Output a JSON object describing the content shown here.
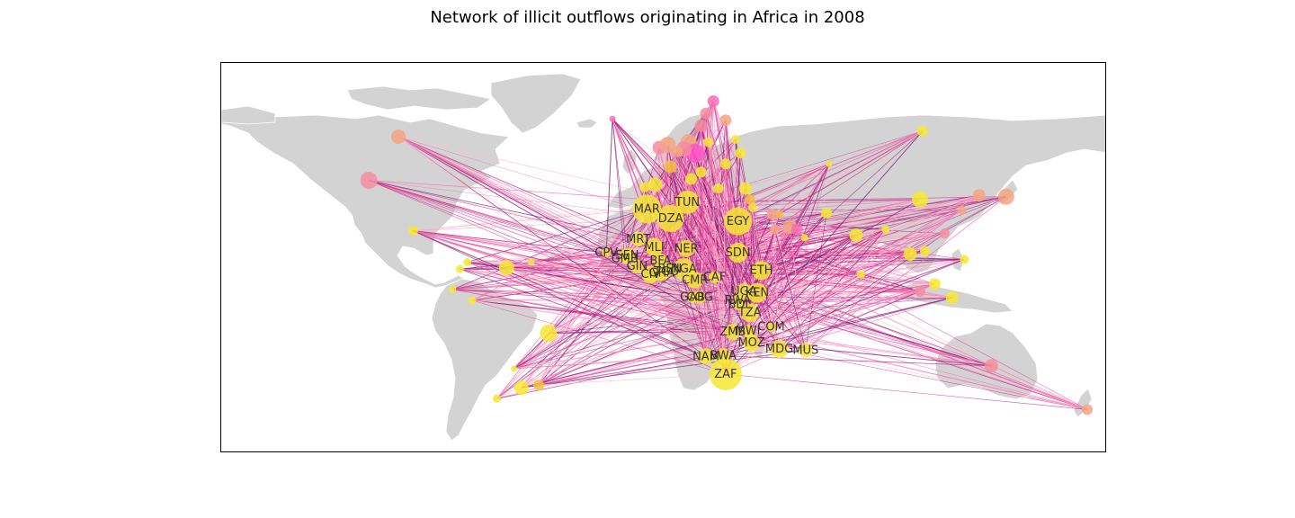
{
  "title": "Network of illicit outflows originating in Africa in 2008",
  "colors": {
    "land": "#d3d3d3",
    "border": "#ffffff",
    "node_african": "#f7e733",
    "edge_palette": [
      "#ffc0cb",
      "#ff9ec8",
      "#f76db5",
      "#e0449a",
      "#b5207f",
      "#7b1c75"
    ]
  },
  "african_nodes": [
    {
      "code": "MAR",
      "lon": -7,
      "lat": 31.5,
      "size": 3.2
    },
    {
      "code": "DZA",
      "lon": 2.6,
      "lat": 28,
      "size": 3.0
    },
    {
      "code": "TUN",
      "lon": 9.5,
      "lat": 34,
      "size": 2.6
    },
    {
      "code": "EGY",
      "lon": 30,
      "lat": 27,
      "size": 3.1
    },
    {
      "code": "MRT",
      "lon": -10.5,
      "lat": 20.5,
      "size": 1.6
    },
    {
      "code": "MLI",
      "lon": -4,
      "lat": 17.5,
      "size": 2.0
    },
    {
      "code": "NER",
      "lon": 9,
      "lat": 17,
      "size": 1.9
    },
    {
      "code": "SDN",
      "lon": 30,
      "lat": 15.5,
      "size": 2.2
    },
    {
      "code": "CPV",
      "lon": -23.5,
      "lat": 15.5,
      "size": 1.0
    },
    {
      "code": "SEN",
      "lon": -15,
      "lat": 14.5,
      "size": 1.7
    },
    {
      "code": "GMB",
      "lon": -16,
      "lat": 13.4,
      "size": 1.1
    },
    {
      "code": "BFA",
      "lon": -1.5,
      "lat": 12.5,
      "size": 1.6
    },
    {
      "code": "GIN",
      "lon": -11,
      "lat": 10.5,
      "size": 1.5
    },
    {
      "code": "BEN",
      "lon": 2.3,
      "lat": 9.5,
      "size": 1.4
    },
    {
      "code": "NGA",
      "lon": 8,
      "lat": 9.5,
      "size": 2.4
    },
    {
      "code": "GHA",
      "lon": -1,
      "lat": 8,
      "size": 1.7
    },
    {
      "code": "TGO",
      "lon": 1,
      "lat": 8.5,
      "size": 1.2
    },
    {
      "code": "CIV",
      "lon": -5.5,
      "lat": 7.5,
      "size": 2.0
    },
    {
      "code": "ETH",
      "lon": 39.5,
      "lat": 9,
      "size": 2.1
    },
    {
      "code": "CMR",
      "lon": 12.5,
      "lat": 5.5,
      "size": 1.9
    },
    {
      "code": "CAF",
      "lon": 20.5,
      "lat": 6.5,
      "size": 1.3
    },
    {
      "code": "GAB",
      "lon": 11.5,
      "lat": -0.8,
      "size": 1.3
    },
    {
      "code": "COG",
      "lon": 14.5,
      "lat": -0.8,
      "size": 1.4
    },
    {
      "code": "UGA",
      "lon": 32.5,
      "lat": 1.3,
      "size": 1.8
    },
    {
      "code": "KEN",
      "lon": 37.8,
      "lat": 0.8,
      "size": 2.2
    },
    {
      "code": "RWA",
      "lon": 29.9,
      "lat": -2,
      "size": 1.2
    },
    {
      "code": "BDI",
      "lon": 30.1,
      "lat": -3.4,
      "size": 1.2
    },
    {
      "code": "TZA",
      "lon": 34.8,
      "lat": -6.4,
      "size": 2.1
    },
    {
      "code": "COM",
      "lon": 43.5,
      "lat": -11.7,
      "size": 1.1
    },
    {
      "code": "ZMB",
      "lon": 27.9,
      "lat": -13.5,
      "size": 1.8
    },
    {
      "code": "MWI",
      "lon": 34,
      "lat": -13.2,
      "size": 1.4
    },
    {
      "code": "MOZ",
      "lon": 35.5,
      "lat": -17.5,
      "size": 1.9
    },
    {
      "code": "MDG",
      "lon": 46.8,
      "lat": -19.8,
      "size": 2.0
    },
    {
      "code": "MUS",
      "lon": 57.5,
      "lat": -20.2,
      "size": 1.6
    },
    {
      "code": "NAM",
      "lon": 17,
      "lat": -22.5,
      "size": 1.8
    },
    {
      "code": "BWA",
      "lon": 24,
      "lat": -22.3,
      "size": 1.7
    },
    {
      "code": "ZAF",
      "lon": 25,
      "lat": -29,
      "size": 3.6
    }
  ],
  "destination_nodes": [
    {
      "lon": -108,
      "lat": 58,
      "size": 1.6,
      "color": "#f4a582"
    },
    {
      "lon": -120,
      "lat": 42,
      "size": 1.9,
      "color": "#f48ca0"
    },
    {
      "lon": -102,
      "lat": 23.5,
      "size": 1.1,
      "color": "#f7e733"
    },
    {
      "lon": -64,
      "lat": 10,
      "size": 1.7,
      "color": "#f7e733"
    },
    {
      "lon": -80,
      "lat": 12,
      "size": 0.9,
      "color": "#f7e733"
    },
    {
      "lon": -83,
      "lat": 9.5,
      "size": 0.9,
      "color": "#f7e733"
    },
    {
      "lon": -86,
      "lat": 2,
      "size": 0.8,
      "color": "#f7e733"
    },
    {
      "lon": -78,
      "lat": -2,
      "size": 0.9,
      "color": "#f7e733"
    },
    {
      "lon": -54,
      "lat": 12,
      "size": 0.7,
      "color": "#f7e733"
    },
    {
      "lon": -47,
      "lat": -14,
      "size": 1.9,
      "color": "#f7e733"
    },
    {
      "lon": -58,
      "lat": -34,
      "size": 1.6,
      "color": "#f7e733"
    },
    {
      "lon": -51,
      "lat": -33,
      "size": 1.2,
      "color": "#f7c040"
    },
    {
      "lon": -68,
      "lat": -38,
      "size": 0.9,
      "color": "#f7e733"
    },
    {
      "lon": -61,
      "lat": -27,
      "size": 0.7,
      "color": "#f7e733"
    },
    {
      "lon": -21,
      "lat": 64.5,
      "size": 0.7,
      "color": "#f76db5"
    },
    {
      "lon": -2,
      "lat": 54,
      "size": 1.5,
      "color": "#f48ca0"
    },
    {
      "lon": 1.5,
      "lat": 55,
      "size": 1.8,
      "color": "#f4a582"
    },
    {
      "lon": 10,
      "lat": 56,
      "size": 1.8,
      "color": "#f4a582"
    },
    {
      "lon": 15,
      "lat": 62,
      "size": 1.4,
      "color": "#f48ca0"
    },
    {
      "lon": 12.5,
      "lat": 52,
      "size": 2.1,
      "color": "#ff52c8"
    },
    {
      "lon": 8,
      "lat": 53.5,
      "size": 1.7,
      "color": "#f48ca0"
    },
    {
      "lon": 17,
      "lat": 66.5,
      "size": 1.3,
      "color": "#f48ca0"
    },
    {
      "lon": 25,
      "lat": 64,
      "size": 1.3,
      "color": "#f4a582"
    },
    {
      "lon": 20,
      "lat": 71,
      "size": 1.3,
      "color": "#f76db5"
    },
    {
      "lon": 5.5,
      "lat": 52.5,
      "size": 1.2,
      "color": "#f4a582"
    },
    {
      "lon": 18,
      "lat": 56,
      "size": 1.1,
      "color": "#f7e733"
    },
    {
      "lon": 25,
      "lat": 48,
      "size": 1.2,
      "color": "#f7e733"
    },
    {
      "lon": 29,
      "lat": 57,
      "size": 1.0,
      "color": "#f7e733"
    },
    {
      "lon": 31,
      "lat": 52,
      "size": 1.2,
      "color": "#f7e733"
    },
    {
      "lon": 2.5,
      "lat": 47,
      "size": 1.4,
      "color": "#f7c040"
    },
    {
      "lon": 15,
      "lat": 45,
      "size": 1.2,
      "color": "#f7e733"
    },
    {
      "lon": -3.7,
      "lat": 40.4,
      "size": 1.6,
      "color": "#f7e733"
    },
    {
      "lon": -8,
      "lat": 39.5,
      "size": 1.1,
      "color": "#f7e733"
    },
    {
      "lon": 11,
      "lat": 42.5,
      "size": 1.3,
      "color": "#f7e733"
    },
    {
      "lon": 22,
      "lat": 39,
      "size": 1.1,
      "color": "#f7e733"
    },
    {
      "lon": 33,
      "lat": 39,
      "size": 1.4,
      "color": "#f7e733"
    },
    {
      "lon": 35,
      "lat": 35,
      "size": 1.1,
      "color": "#f7c040"
    },
    {
      "lon": 36,
      "lat": 32,
      "size": 1.0,
      "color": "#f7e733"
    },
    {
      "lon": 44,
      "lat": 29.5,
      "size": 1.2,
      "color": "#f4a582"
    },
    {
      "lon": 47,
      "lat": 29.5,
      "size": 0.8,
      "color": "#f7c040"
    },
    {
      "lon": 51,
      "lat": 25,
      "size": 1.6,
      "color": "#f4a582"
    },
    {
      "lon": 54,
      "lat": 24,
      "size": 1.3,
      "color": "#f76db5"
    },
    {
      "lon": 45,
      "lat": 24,
      "size": 1.1,
      "color": "#f4a582"
    },
    {
      "lon": 57,
      "lat": 21,
      "size": 0.8,
      "color": "#f7e733"
    },
    {
      "lon": 66,
      "lat": 30,
      "size": 1.2,
      "color": "#f7e733"
    },
    {
      "lon": 78,
      "lat": 22,
      "size": 1.5,
      "color": "#f7e733"
    },
    {
      "lon": 90,
      "lat": 24,
      "size": 0.9,
      "color": "#f7e733"
    },
    {
      "lon": 104,
      "lat": 35,
      "size": 1.8,
      "color": "#f7e733"
    },
    {
      "lon": 100,
      "lat": 15,
      "size": 1.5,
      "color": "#f7e733"
    },
    {
      "lon": 106,
      "lat": 16,
      "size": 1.1,
      "color": "#f7e733"
    },
    {
      "lon": 114,
      "lat": 22.5,
      "size": 1.1,
      "color": "#f48ca0"
    },
    {
      "lon": 122,
      "lat": 13,
      "size": 1.0,
      "color": "#f7e733"
    },
    {
      "lon": 104,
      "lat": 1.3,
      "size": 1.2,
      "color": "#f48ca0"
    },
    {
      "lon": 110,
      "lat": 4,
      "size": 1.3,
      "color": "#f7e733"
    },
    {
      "lon": 117,
      "lat": -1,
      "size": 1.4,
      "color": "#f7e733"
    },
    {
      "lon": 80,
      "lat": 7.5,
      "size": 0.9,
      "color": "#f7e733"
    },
    {
      "lon": 128,
      "lat": 36.5,
      "size": 1.4,
      "color": "#f4a582"
    },
    {
      "lon": 139,
      "lat": 36,
      "size": 1.8,
      "color": "#f4a582"
    },
    {
      "lon": 121,
      "lat": 31,
      "size": 1.0,
      "color": "#f4a582"
    },
    {
      "lon": 133,
      "lat": -26,
      "size": 1.5,
      "color": "#f48ca0"
    },
    {
      "lon": 172,
      "lat": -42,
      "size": 1.2,
      "color": "#f4a582"
    },
    {
      "lon": 105,
      "lat": 60,
      "size": 1.2,
      "color": "#f7e733"
    },
    {
      "lon": 67,
      "lat": 48,
      "size": 0.7,
      "color": "#f7e733"
    }
  ]
}
